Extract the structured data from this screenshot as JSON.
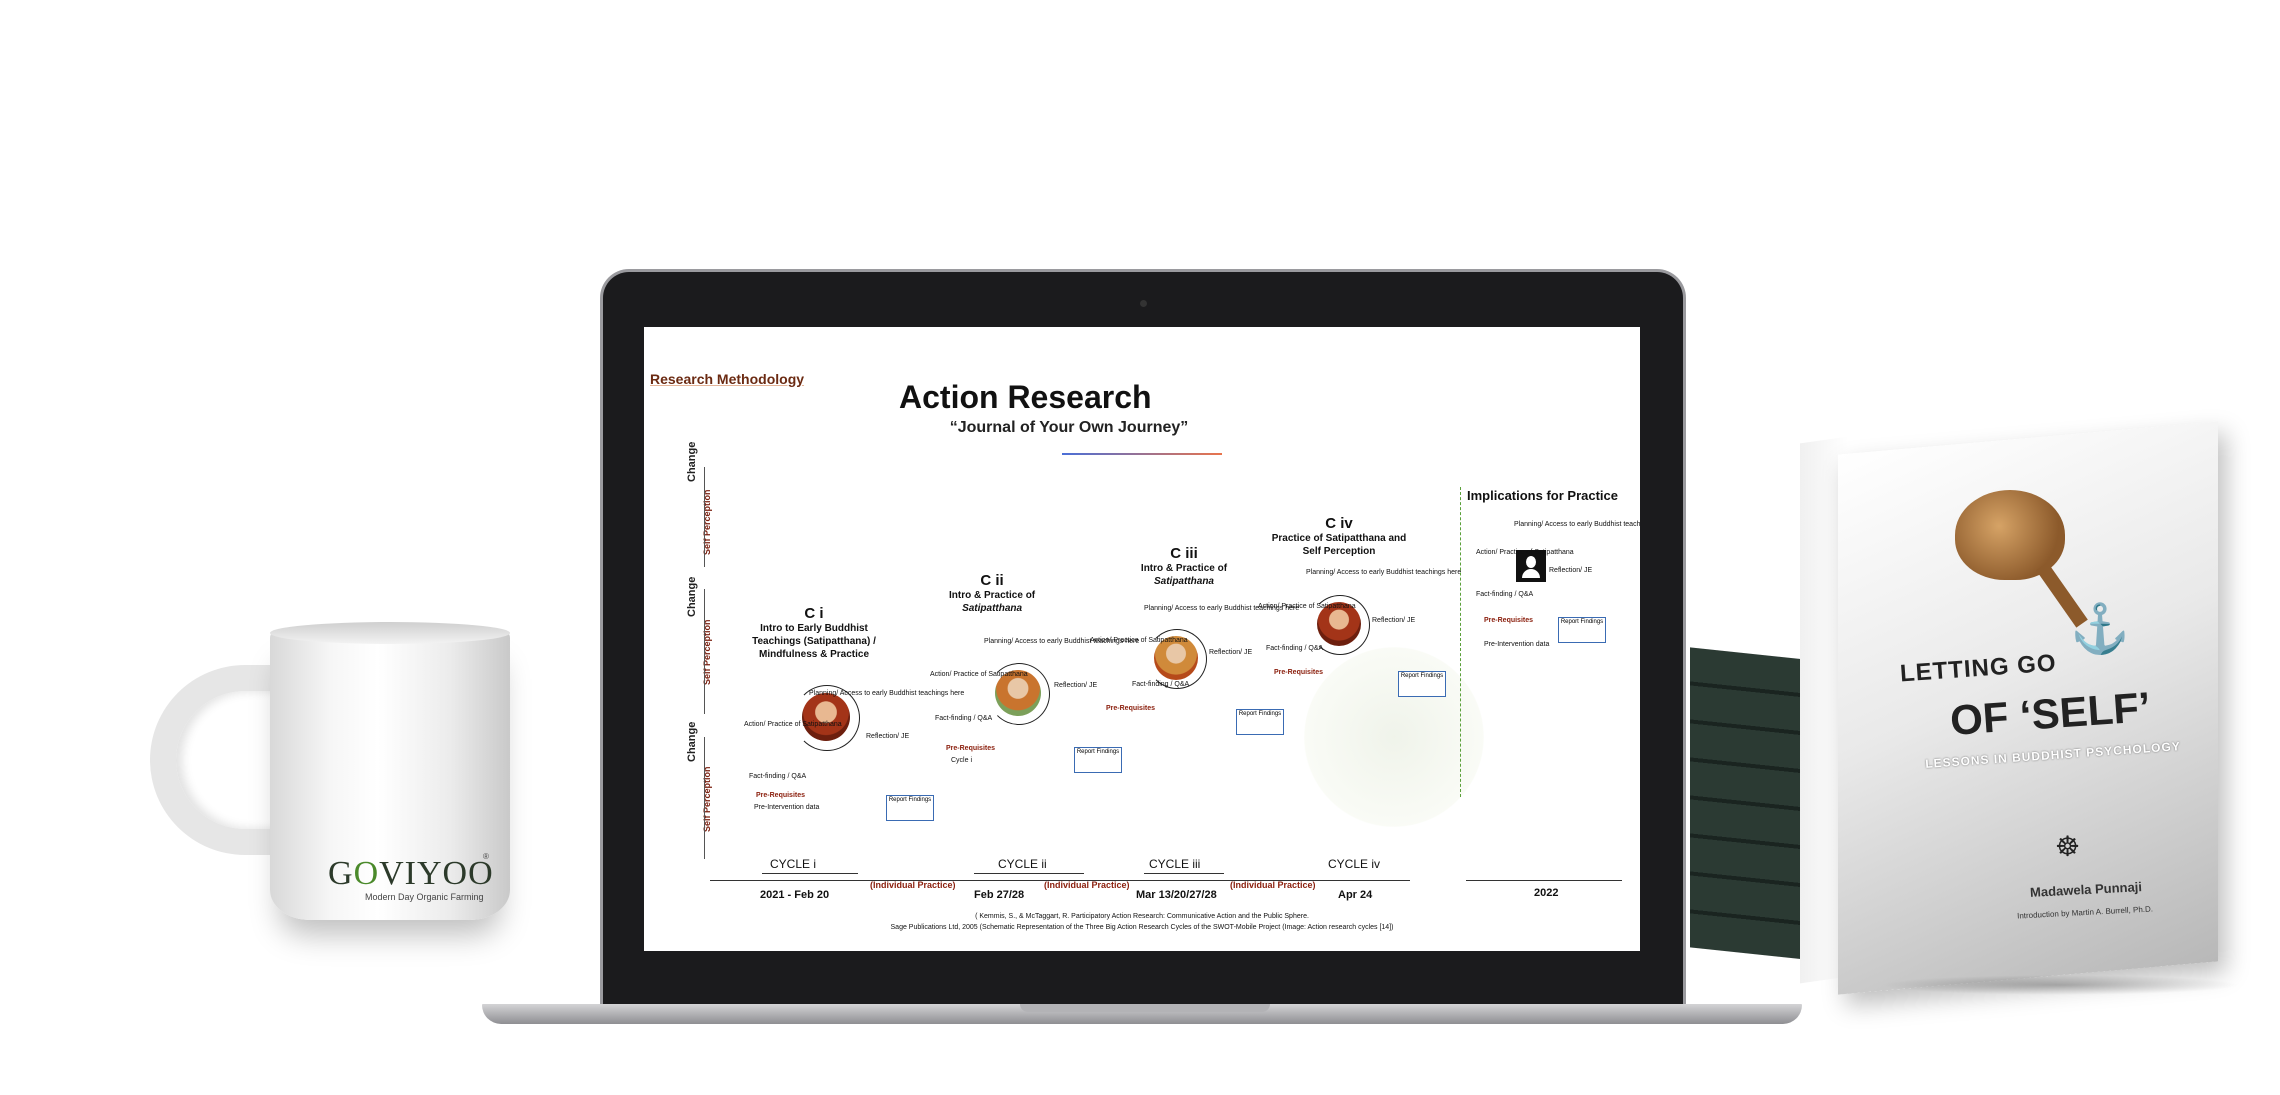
{
  "mug": {
    "brand_prefix": "G",
    "brand_o": "O",
    "brand_suffix": "VIYOO",
    "registered": "®",
    "tagline": "Modern Day Organic Farming"
  },
  "slide": {
    "section_label": "Research Methodology",
    "title": "Action Research",
    "subtitle": "“Journal of Your Own Journey”",
    "axis": {
      "change": "Change",
      "self_perception": "Self Perception"
    },
    "cycles": [
      {
        "code": "C i",
        "desc1": "Intro to Early Buddhist",
        "desc2": "Teachings (Satipatthana) /",
        "desc3": "Mindfulness & Practice",
        "label": "CYCLE i",
        "date": "2021   - Feb 20"
      },
      {
        "code": "C ii",
        "desc1": "Intro & Practice of",
        "desc2": "Satipatthana",
        "desc3": "",
        "label": "CYCLE ii",
        "date": "Feb 27/28"
      },
      {
        "code": "C iii",
        "desc1": "Intro & Practice of",
        "desc2": "Satipatthana",
        "desc3": "",
        "label": "CYCLE iii",
        "date": "Mar 13/20/27/28"
      },
      {
        "code": "C iv",
        "desc1": "Practice of Satipatthana and",
        "desc2": "Self Perception",
        "desc3": "",
        "label": "CYCLE iv",
        "date": "Apr 24"
      }
    ],
    "cycle_steps": {
      "planning": "Planning/ Access to early Buddhist teachings here",
      "action": "Action/ Practice of Satipatthana",
      "reflection": "Reflection/ JE",
      "fact_finding": "Fact-finding / Q&A",
      "prereq": "Pre-Requisites",
      "pre_intervention": "Pre-Intervention  data",
      "report": "Report Findings",
      "cycle_i": "Cycle i"
    },
    "individual_practice": "(Individual Practice)",
    "implications_title": "Implications for Practice",
    "implications_date": "2022",
    "citation1": "( Kemmis, S., & McTaggart, R. Participatory Action Research: Communicative Action and the Public Sphere.",
    "citation2": "Sage Publications Ltd, 2005 (Schematic Representation of the Three Big Action Research Cycles of the SWOT-Mobile Project (Image: Action research cycles [14])"
  },
  "book": {
    "title_line1": "LETTING GO",
    "title_line2": "OF ‘SELF’",
    "subtitle": "LESSONS IN BUDDHIST PSYCHOLOGY",
    "author": "Madawela Punnaji",
    "intro": "Introduction by Martin A. Burrell, Ph.D."
  },
  "colors": {
    "slide_label": "#6b2a12",
    "accent_green": "#4b8a2b",
    "book_stack": "#2b3a33"
  }
}
